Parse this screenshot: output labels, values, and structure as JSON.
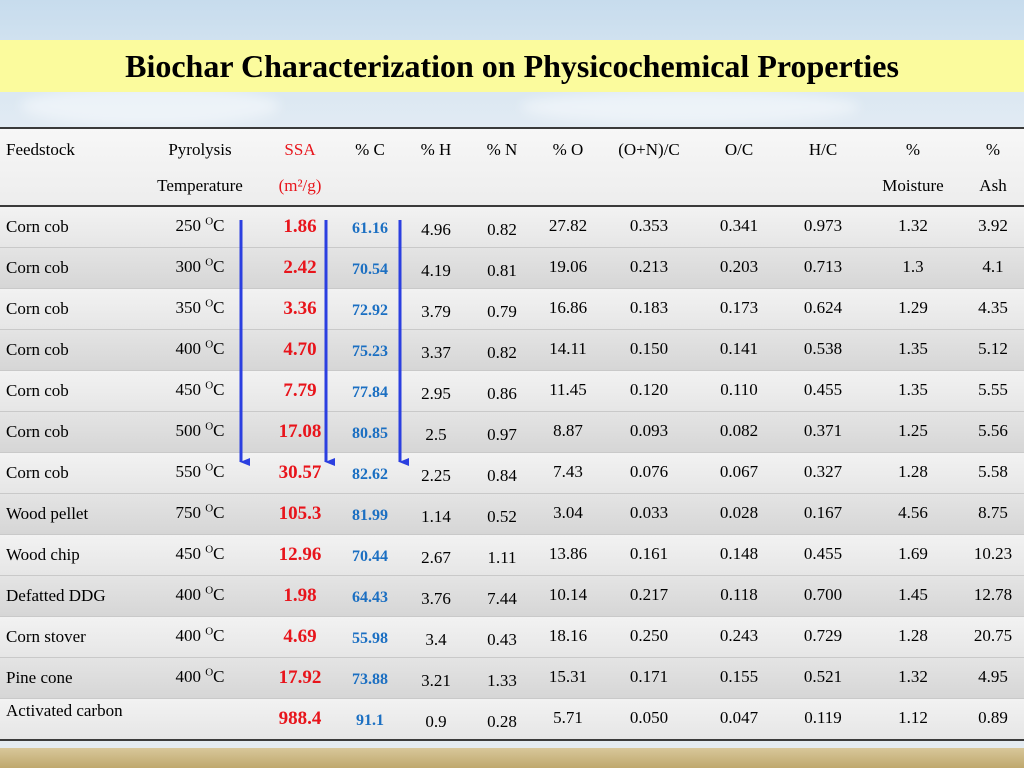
{
  "title": "Biochar Characterization on Physicochemical Properties",
  "headers": {
    "feedstock": "Feedstock",
    "pyrolysis_1": "Pyrolysis",
    "pyrolysis_2": "Temperature",
    "ssa_1": "SSA",
    "ssa_2": "(m²/g)",
    "c": "% C",
    "h": "% H",
    "n": "% N",
    "o": "% O",
    "on_c": "(O+N)/C",
    "oc": "O/C",
    "hc": "H/C",
    "moist_1": "%",
    "moist_2": "Moisture",
    "ash_1": "%",
    "ash_2": "Ash"
  },
  "temp_unit": "C",
  "temp_sup": "O",
  "rows": [
    {
      "feedstock": "Corn cob",
      "temp": "250",
      "ssa": "1.86",
      "c": "61.16",
      "h": "4.96",
      "n": "0.82",
      "o": "27.82",
      "onc": "0.353",
      "oc": "0.341",
      "hc": "0.973",
      "moist": "1.32",
      "ash": "3.92"
    },
    {
      "feedstock": "Corn cob",
      "temp": "300",
      "ssa": "2.42",
      "c": "70.54",
      "h": "4.19",
      "n": "0.81",
      "o": "19.06",
      "onc": "0.213",
      "oc": "0.203",
      "hc": "0.713",
      "moist": "1.3",
      "ash": "4.1"
    },
    {
      "feedstock": "Corn cob",
      "temp": "350",
      "ssa": "3.36",
      "c": "72.92",
      "h": "3.79",
      "n": "0.79",
      "o": "16.86",
      "onc": "0.183",
      "oc": "0.173",
      "hc": "0.624",
      "moist": "1.29",
      "ash": "4.35"
    },
    {
      "feedstock": "Corn cob",
      "temp": "400",
      "ssa": "4.70",
      "c": "75.23",
      "h": "3.37",
      "n": "0.82",
      "o": "14.11",
      "onc": "0.150",
      "oc": "0.141",
      "hc": "0.538",
      "moist": "1.35",
      "ash": "5.12"
    },
    {
      "feedstock": "Corn cob",
      "temp": "450",
      "ssa": "7.79",
      "c": "77.84",
      "h": "2.95",
      "n": "0.86",
      "o": "11.45",
      "onc": "0.120",
      "oc": "0.110",
      "hc": "0.455",
      "moist": "1.35",
      "ash": "5.55"
    },
    {
      "feedstock": "Corn cob",
      "temp": "500",
      "ssa": "17.08",
      "c": "80.85",
      "h": "2.5",
      "n": "0.97",
      "o": "8.87",
      "onc": "0.093",
      "oc": "0.082",
      "hc": "0.371",
      "moist": "1.25",
      "ash": "5.56"
    },
    {
      "feedstock": "Corn cob",
      "temp": "550",
      "ssa": "30.57",
      "c": "82.62",
      "h": "2.25",
      "n": "0.84",
      "o": "7.43",
      "onc": "0.076",
      "oc": "0.067",
      "hc": "0.327",
      "moist": "1.28",
      "ash": "5.58"
    },
    {
      "feedstock": "Wood pellet",
      "temp": "750",
      "ssa": "105.3",
      "c": "81.99",
      "h": "1.14",
      "n": "0.52",
      "o": "3.04",
      "onc": "0.033",
      "oc": "0.028",
      "hc": "0.167",
      "moist": "4.56",
      "ash": "8.75"
    },
    {
      "feedstock": "Wood chip",
      "temp": "450",
      "ssa": "12.96",
      "c": "70.44",
      "h": "2.67",
      "n": "1.11",
      "o": "13.86",
      "onc": "0.161",
      "oc": "0.148",
      "hc": "0.455",
      "moist": "1.69",
      "ash": "10.23"
    },
    {
      "feedstock": "Defatted DDG",
      "temp": "400",
      "ssa": "1.98",
      "c": "64.43",
      "h": "3.76",
      "n": "7.44",
      "o": "10.14",
      "onc": "0.217",
      "oc": "0.118",
      "hc": "0.700",
      "moist": "1.45",
      "ash": "12.78"
    },
    {
      "feedstock": "Corn stover",
      "temp": "400",
      "ssa": "4.69",
      "c": "55.98",
      "h": "3.4",
      "n": "0.43",
      "o": "18.16",
      "onc": "0.250",
      "oc": "0.243",
      "hc": "0.729",
      "moist": "1.28",
      "ash": "20.75"
    },
    {
      "feedstock": "Pine cone",
      "temp": "400",
      "ssa": "17.92",
      "c": "73.88",
      "h": "3.21",
      "n": "1.33",
      "o": "15.31",
      "onc": "0.171",
      "oc": "0.155",
      "hc": "0.521",
      "moist": "1.32",
      "ash": "4.95"
    },
    {
      "feedstock": "Activated carbon",
      "temp": "",
      "ssa": "988.4",
      "c": "91.1",
      "h": "0.9",
      "n": "0.28",
      "o": "5.71",
      "onc": "0.050",
      "oc": "0.047",
      "hc": "0.119",
      "moist": "1.12",
      "ash": "0.89"
    }
  ],
  "colors": {
    "title_bg": "#fbfb9d",
    "ssa": "#e8141b",
    "carbon": "#1b6fc2",
    "arrow": "#2b3fe0"
  }
}
